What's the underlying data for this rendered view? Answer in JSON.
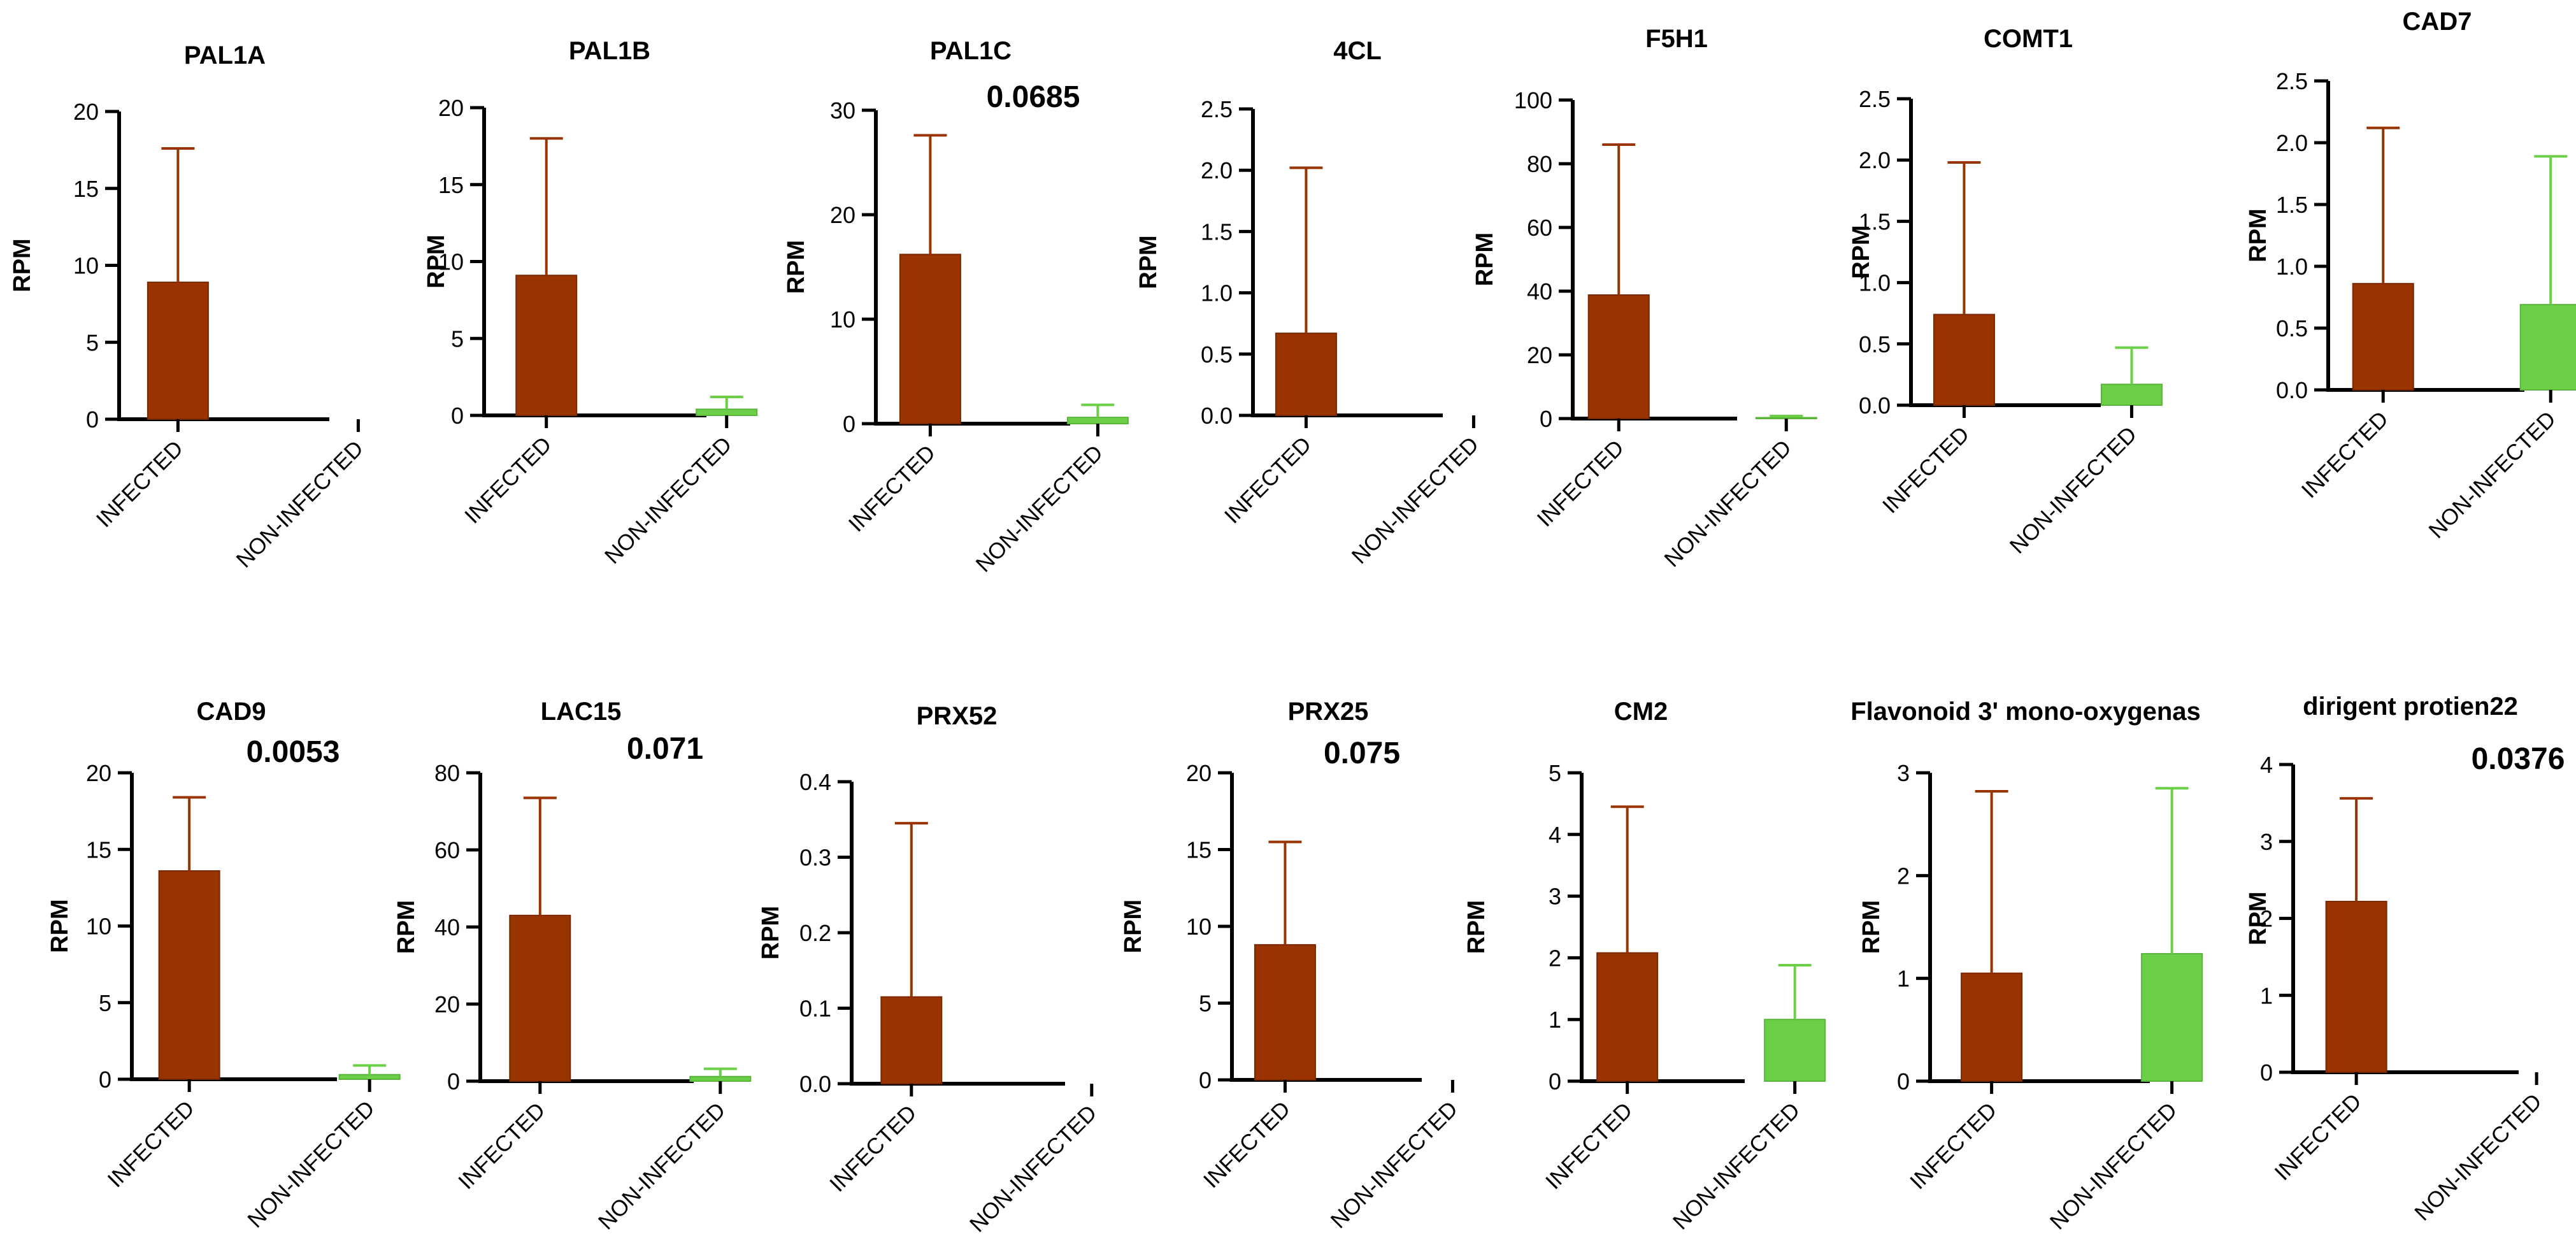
{
  "colors": {
    "infected": "#993300",
    "non_infected": "#6ccf48",
    "axis": "#000000",
    "text": "#000000"
  },
  "chart_data": [
    {
      "type": "bar",
      "title": "PAL1A",
      "ylabel": "RPM",
      "categories": [
        "INFECTED",
        "NON-INFECTED"
      ],
      "values": [
        8.9,
        0
      ],
      "error": [
        8.7,
        0
      ],
      "ylim": [
        0,
        20
      ],
      "yticks": [
        "0",
        "5",
        "10",
        "15",
        "20"
      ],
      "pvalue": ""
    },
    {
      "type": "bar",
      "title": "PAL1B",
      "ylabel": "RPM",
      "categories": [
        "INFECTED",
        "NON-INFECTED"
      ],
      "values": [
        9.1,
        0.4
      ],
      "error": [
        8.9,
        0.8
      ],
      "ylim": [
        0,
        20
      ],
      "yticks": [
        "0",
        "5",
        "10",
        "15",
        "20"
      ],
      "pvalue": ""
    },
    {
      "type": "bar",
      "title": "PAL1C",
      "ylabel": "RPM",
      "categories": [
        "INFECTED",
        "NON-INFECTED"
      ],
      "values": [
        16.2,
        0.6
      ],
      "error": [
        11.4,
        1.2
      ],
      "ylim": [
        0,
        30
      ],
      "yticks": [
        "0",
        "10",
        "20",
        "30"
      ],
      "pvalue": "0.0685"
    },
    {
      "type": "bar",
      "title": "4CL",
      "ylabel": "RPM",
      "categories": [
        "INFECTED",
        "NON-INFECTED"
      ],
      "values": [
        0.67,
        0
      ],
      "error": [
        1.35,
        0
      ],
      "ylim": [
        0,
        2.5
      ],
      "yticks": [
        "0.0",
        "0.5",
        "1.0",
        "1.5",
        "2.0",
        "2.5"
      ],
      "pvalue": ""
    },
    {
      "type": "bar",
      "title": "F5H1",
      "ylabel": "RPM",
      "categories": [
        "INFECTED",
        "NON-INFECTED"
      ],
      "values": [
        38.8,
        0.3
      ],
      "error": [
        47.2,
        0.5
      ],
      "ylim": [
        0,
        100
      ],
      "yticks": [
        "0",
        "20",
        "40",
        "60",
        "80",
        "100"
      ],
      "pvalue": ""
    },
    {
      "type": "bar",
      "title": "COMT1",
      "ylabel": "RPM",
      "categories": [
        "INFECTED",
        "NON-INFECTED"
      ],
      "values": [
        0.74,
        0.17
      ],
      "error": [
        1.24,
        0.3
      ],
      "ylim": [
        0,
        2.5
      ],
      "yticks": [
        "0.0",
        "0.5",
        "1.0",
        "1.5",
        "2.0",
        "2.5"
      ],
      "pvalue": ""
    },
    {
      "type": "bar",
      "title": "CAD7",
      "ylabel": "RPM",
      "categories": [
        "INFECTED",
        "NON-INFECTED"
      ],
      "values": [
        0.86,
        0.69
      ],
      "error": [
        1.26,
        1.2
      ],
      "ylim": [
        0,
        2.5
      ],
      "yticks": [
        "0.0",
        "0.5",
        "1.0",
        "1.5",
        "2.0",
        "2.5"
      ],
      "pvalue": ""
    },
    {
      "type": "bar",
      "title": "CAD9",
      "ylabel": "RPM",
      "categories": [
        "INFECTED",
        "NON-INFECTED"
      ],
      "values": [
        13.6,
        0.3
      ],
      "error": [
        4.8,
        0.6
      ],
      "ylim": [
        0,
        20
      ],
      "yticks": [
        "0",
        "5",
        "10",
        "15",
        "20"
      ],
      "pvalue": "0.0053"
    },
    {
      "type": "bar",
      "title": "LAC15",
      "ylabel": "RPM",
      "categories": [
        "INFECTED",
        "NON-INFECTED"
      ],
      "values": [
        43,
        1.2
      ],
      "error": [
        30.5,
        2.0
      ],
      "ylim": [
        0,
        80
      ],
      "yticks": [
        "0",
        "20",
        "40",
        "60",
        "80"
      ],
      "pvalue": "0.071"
    },
    {
      "type": "bar",
      "title": "PRX52",
      "ylabel": "RPM",
      "categories": [
        "INFECTED",
        "NON-INFECTED"
      ],
      "values": [
        0.115,
        0
      ],
      "error": [
        0.23,
        0
      ],
      "ylim": [
        0,
        0.4
      ],
      "yticks": [
        "0.0",
        "0.1",
        "0.2",
        "0.3",
        "0.4"
      ],
      "pvalue": ""
    },
    {
      "type": "bar",
      "title": "PRX25",
      "ylabel": "RPM",
      "categories": [
        "INFECTED",
        "NON-INFECTED"
      ],
      "values": [
        8.8,
        0
      ],
      "error": [
        6.7,
        0
      ],
      "ylim": [
        0,
        20
      ],
      "yticks": [
        "0",
        "5",
        "10",
        "15",
        "20"
      ],
      "pvalue": "0.075"
    },
    {
      "type": "bar",
      "title": "CM2",
      "ylabel": "RPM",
      "categories": [
        "INFECTED",
        "NON-INFECTED"
      ],
      "values": [
        2.08,
        1.0
      ],
      "error": [
        2.37,
        0.88
      ],
      "ylim": [
        0,
        5
      ],
      "yticks": [
        "0",
        "1",
        "2",
        "3",
        "4",
        "5"
      ],
      "pvalue": ""
    },
    {
      "type": "bar",
      "title": "Flavonoid 3' mono-oxygenas",
      "ylabel": "RPM",
      "categories": [
        "INFECTED",
        "NON-INFECTED"
      ],
      "values": [
        1.05,
        1.24
      ],
      "error": [
        1.77,
        1.61
      ],
      "ylim": [
        0,
        3
      ],
      "yticks": [
        "0",
        "1",
        "2",
        "3"
      ],
      "pvalue": ""
    },
    {
      "type": "bar",
      "title": "dirigent protien22",
      "ylabel": "RPM",
      "categories": [
        "INFECTED",
        "NON-INFECTED"
      ],
      "values": [
        2.22,
        0
      ],
      "error": [
        1.34,
        0
      ],
      "ylim": [
        0,
        4
      ],
      "yticks": [
        "0",
        "1",
        "2",
        "3",
        "4"
      ],
      "pvalue": "0.0376"
    }
  ]
}
